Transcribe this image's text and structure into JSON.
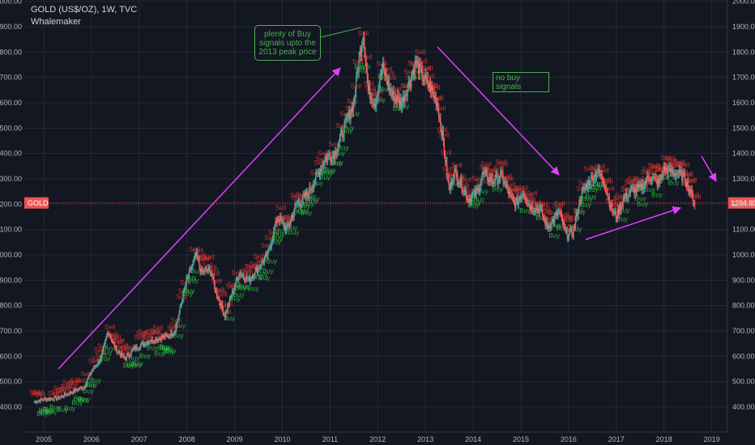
{
  "header": {
    "symbol_title": "GOLD (US$/OZ), 1W, TVC",
    "indicator": "Whalemaker"
  },
  "annotations": {
    "buy_note": [
      "plenty of Buy",
      "signals upto the",
      "2013 peak price"
    ],
    "nobuy_note": [
      "no buy",
      "signals"
    ]
  },
  "price_labels": {
    "current_left": "GOLD",
    "current_right": "1204.80"
  },
  "colors": {
    "background": "#131722",
    "grid": "#262a36",
    "sell": "#e53935",
    "buy": "#2ecc40",
    "arrow": "#e040fb",
    "price_line": "#ef5350",
    "note": "#4caf50"
  },
  "signal_words": {
    "buy": "Buy",
    "sell": "Sell"
  },
  "chart_data": {
    "type": "line",
    "title": "GOLD (US$/OZ), 1W, TVC",
    "ylim": [
      350,
      2000
    ],
    "xlim": [
      2004.75,
      2019.05
    ],
    "y_ticks": [
      "2000.00",
      "1900.00",
      "1800.00",
      "1700.00",
      "1600.00",
      "1500.00",
      "1400.00",
      "1300.00",
      "1200.00",
      "1100.00",
      "1000.00",
      "900.00",
      "800.00",
      "700.00",
      "600.00",
      "500.00",
      "400.00"
    ],
    "x_ticks": [
      "2005",
      "2006",
      "2007",
      "2008",
      "2009",
      "2010",
      "2011",
      "2012",
      "2013",
      "2014",
      "2015",
      "2016",
      "2017",
      "2018",
      "2019"
    ],
    "last_price": 1204.8,
    "series": [
      {
        "x": [
          2004.8,
          2005.0,
          2005.3,
          2005.6,
          2005.85,
          2006.0,
          2006.2,
          2006.35,
          2006.5,
          2006.7,
          2006.9,
          2007.2,
          2007.4,
          2007.6,
          2007.75,
          2007.9,
          2008.0,
          2008.2,
          2008.3,
          2008.5,
          2008.6,
          2008.8,
          2008.9,
          2009.1,
          2009.3,
          2009.5,
          2009.7,
          2009.9,
          2010.1,
          2010.3,
          2010.5,
          2010.7,
          2010.9,
          2011.1,
          2011.3,
          2011.5,
          2011.6,
          2011.7,
          2011.8,
          2011.95,
          2012.1,
          2012.3,
          2012.5,
          2012.7,
          2012.8,
          2012.95,
          2013.1,
          2013.25,
          2013.35,
          2013.5,
          2013.6,
          2013.75,
          2013.9,
          2014.1,
          2014.2,
          2014.4,
          2014.6,
          2014.8,
          2014.9,
          2015.05,
          2015.2,
          2015.4,
          2015.55,
          2015.7,
          2015.8,
          2015.95,
          2016.1,
          2016.25,
          2016.4,
          2016.6,
          2016.75,
          2016.9,
          2017.0,
          2017.15,
          2017.3,
          2017.5,
          2017.7,
          2017.9,
          2018.0,
          2018.1,
          2018.3,
          2018.45,
          2018.55,
          2018.65
        ],
        "y": [
          420,
          430,
          435,
          460,
          480,
          540,
          590,
          700,
          630,
          590,
          630,
          660,
          670,
          680,
          700,
          820,
          900,
          1000,
          930,
          940,
          860,
          760,
          820,
          930,
          900,
          950,
          1000,
          1150,
          1100,
          1200,
          1230,
          1300,
          1380,
          1400,
          1500,
          1600,
          1760,
          1880,
          1650,
          1600,
          1740,
          1630,
          1600,
          1700,
          1760,
          1700,
          1660,
          1600,
          1480,
          1250,
          1330,
          1280,
          1220,
          1250,
          1320,
          1290,
          1310,
          1220,
          1200,
          1250,
          1190,
          1180,
          1110,
          1140,
          1170,
          1080,
          1090,
          1230,
          1280,
          1330,
          1290,
          1180,
          1150,
          1220,
          1250,
          1260,
          1310,
          1280,
          1340,
          1330,
          1320,
          1300,
          1250,
          1200
        ]
      }
    ]
  }
}
